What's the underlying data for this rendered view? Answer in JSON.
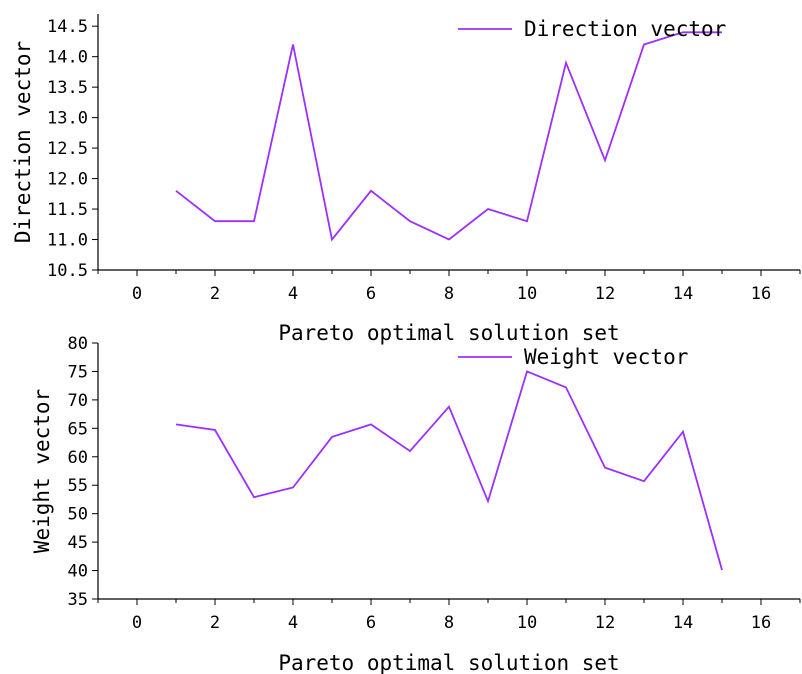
{
  "chart_data": [
    {
      "type": "line",
      "xlabel": "Pareto optimal solution set",
      "ylabel": "Direction vector",
      "xlim": [
        -1,
        17
      ],
      "ylim": [
        10.5,
        14.7
      ],
      "xticks": [
        0,
        2,
        4,
        6,
        8,
        10,
        12,
        14,
        16
      ],
      "yticks": [
        10.5,
        11.0,
        11.5,
        12.0,
        12.5,
        13.0,
        13.5,
        14.0,
        14.5
      ],
      "ytick_labels": [
        "10.5",
        "11.0",
        "11.5",
        "12.0",
        "12.5",
        "13.0",
        "13.5",
        "14.0",
        "14.5"
      ],
      "legend_position": "top-right",
      "grid": false,
      "series": [
        {
          "name": "Direction vector",
          "color": "#9b30ff",
          "x": [
            1,
            2,
            3,
            4,
            5,
            6,
            7,
            8,
            9,
            10,
            11,
            12,
            13,
            14,
            15
          ],
          "y": [
            11.8,
            11.3,
            11.3,
            14.2,
            11.0,
            11.8,
            11.3,
            11.0,
            11.5,
            11.3,
            13.9,
            12.3,
            14.2,
            14.4,
            14.4
          ]
        }
      ]
    },
    {
      "type": "line",
      "xlabel": "Pareto optimal solution set",
      "ylabel": "Weight vector",
      "xlim": [
        -1,
        17
      ],
      "ylim": [
        35,
        80
      ],
      "xticks": [
        0,
        2,
        4,
        6,
        8,
        10,
        12,
        14,
        16
      ],
      "yticks": [
        35,
        40,
        45,
        50,
        55,
        60,
        65,
        70,
        75,
        80
      ],
      "ytick_labels": [
        "35",
        "40",
        "45",
        "50",
        "55",
        "60",
        "65",
        "70",
        "75",
        "80"
      ],
      "legend_position": "top-right",
      "grid": false,
      "series": [
        {
          "name": "Weight vector",
          "color": "#9b30ff",
          "x": [
            1,
            2,
            3,
            4,
            5,
            6,
            7,
            8,
            9,
            10,
            11,
            12,
            13,
            14,
            15
          ],
          "y": [
            65.7,
            64.7,
            52.9,
            54.6,
            63.5,
            65.7,
            61.0,
            68.8,
            52.2,
            75.0,
            72.2,
            58.1,
            55.7,
            64.4,
            40.1
          ]
        }
      ]
    }
  ]
}
